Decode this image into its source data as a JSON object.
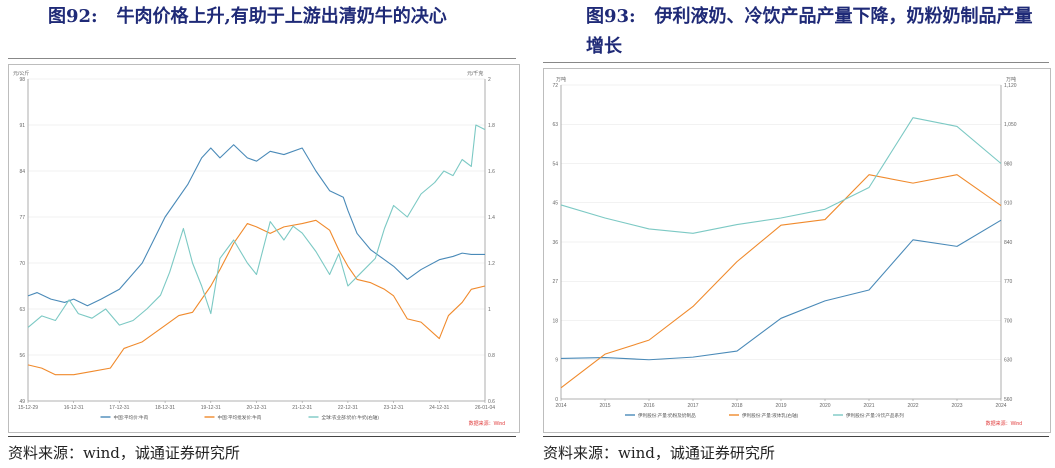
{
  "left": {
    "fig_no": "图92:",
    "title": "牛肉价格上升,有助于上游出清奶牛的决心",
    "source": "资料来源：wind，诚通证券研究所",
    "wind_note": "数据来源：Wind",
    "colors": {
      "beef_price": "#4a8ab8",
      "cow_price": "#f08a2c",
      "milk_price": "#7cc9c4",
      "wind_note": "#e03b3b"
    },
    "chart_data": {
      "type": "line",
      "left_unit": "元/公斤",
      "right_unit": "元/千克",
      "y_left": {
        "range": [
          49,
          98
        ],
        "ticks": [
          "49",
          "56",
          "63",
          "70",
          "77",
          "84",
          "91",
          "98"
        ]
      },
      "y_right": {
        "range": [
          0.6,
          2.0
        ],
        "ticks": [
          "0.6",
          "0.8",
          "1",
          "1.2",
          "1.4",
          "1.6",
          "1.8",
          "2"
        ]
      },
      "x_ticks": [
        "15-12-29",
        "16-12-31",
        "17-12-31",
        "18-12-31",
        "19-12-31",
        "20-12-31",
        "21-12-31",
        "22-12-31",
        "23-12-31",
        "24-12-31",
        "26-01-04"
      ],
      "grid": true,
      "legend_position": "bottom",
      "series": [
        {
          "name": "中国:平均价:牛肉",
          "axis": "left",
          "x": [
            0,
            0.2,
            0.5,
            0.8,
            1.0,
            1.3,
            1.6,
            2.0,
            2.5,
            3.0,
            3.5,
            3.8,
            4.0,
            4.2,
            4.5,
            4.8,
            5.0,
            5.3,
            5.6,
            6.0,
            6.3,
            6.6,
            6.9,
            7.0,
            7.2,
            7.5,
            7.8,
            8.0,
            8.3,
            8.6,
            9.0,
            9.3,
            9.5,
            9.7,
            10.0
          ],
          "y": [
            65.0,
            65.5,
            64.5,
            64.0,
            64.5,
            63.5,
            64.5,
            66.0,
            70.0,
            77.0,
            82.0,
            86.0,
            87.5,
            86.0,
            88.0,
            86.0,
            85.5,
            87.0,
            86.5,
            87.5,
            84.0,
            81.0,
            80.0,
            78.0,
            74.5,
            72.0,
            70.5,
            69.5,
            67.5,
            69.0,
            70.5,
            71.0,
            71.5,
            71.3,
            71.3
          ]
        },
        {
          "name": "中国:平均批发价:牛肉",
          "axis": "left",
          "x": [
            0,
            0.3,
            0.6,
            1.0,
            1.4,
            1.8,
            2.1,
            2.5,
            3.0,
            3.3,
            3.6,
            4.0,
            4.2,
            4.5,
            4.8,
            5.0,
            5.3,
            5.6,
            6.0,
            6.3,
            6.6,
            6.8,
            7.0,
            7.2,
            7.5,
            7.8,
            8.0,
            8.3,
            8.6,
            9.0,
            9.2,
            9.5,
            9.7,
            10.0
          ],
          "y": [
            54.5,
            54.0,
            53.0,
            53.0,
            53.5,
            54.0,
            57.0,
            58.0,
            60.5,
            62.0,
            62.5,
            66.5,
            69.0,
            73.0,
            76.0,
            75.5,
            74.5,
            75.5,
            76.0,
            76.5,
            75.0,
            72.0,
            69.5,
            67.5,
            67.0,
            66.0,
            65.0,
            61.5,
            61.0,
            58.5,
            62.0,
            64.0,
            66.0,
            66.5
          ]
        },
        {
          "name": "全球:农业部:奶价:牛奶(右轴)",
          "axis": "right",
          "x": [
            0,
            0.3,
            0.6,
            0.9,
            1.1,
            1.4,
            1.7,
            2.0,
            2.3,
            2.6,
            2.9,
            3.1,
            3.4,
            3.6,
            3.8,
            4.0,
            4.2,
            4.5,
            4.8,
            5.0,
            5.3,
            5.6,
            5.8,
            6.0,
            6.3,
            6.6,
            6.8,
            7.0,
            7.3,
            7.6,
            7.8,
            8.0,
            8.3,
            8.6,
            8.9,
            9.1,
            9.3,
            9.5,
            9.7,
            9.8,
            10.0
          ],
          "y": [
            0.92,
            0.97,
            0.95,
            1.04,
            0.98,
            0.96,
            1.0,
            0.93,
            0.95,
            1.0,
            1.06,
            1.16,
            1.35,
            1.2,
            1.1,
            0.98,
            1.22,
            1.3,
            1.2,
            1.15,
            1.38,
            1.3,
            1.36,
            1.33,
            1.25,
            1.15,
            1.24,
            1.1,
            1.16,
            1.22,
            1.35,
            1.45,
            1.4,
            1.5,
            1.55,
            1.6,
            1.58,
            1.65,
            1.62,
            1.8,
            1.78
          ]
        }
      ]
    }
  },
  "right": {
    "fig_no": "图93:",
    "title": "伊利液奶、冷饮产品产量下降，奶粉奶制品产量增长",
    "source": "资料来源：wind，诚通证券研究所",
    "wind_note": "数据来源：Wind",
    "colors": {
      "milk_powder": "#4a8ab8",
      "liquid_milk": "#f08a2c",
      "cold_drinks": "#7cc9c4",
      "wind_note": "#e03b3b"
    },
    "chart_data": {
      "type": "line",
      "left_unit": "万吨",
      "right_unit": "万吨",
      "y_left": {
        "range": [
          0,
          72
        ],
        "ticks": [
          "0",
          "9",
          "18",
          "27",
          "36",
          "45",
          "54",
          "63",
          "72"
        ]
      },
      "y_right": {
        "range": [
          560,
          1120
        ],
        "ticks": [
          "560",
          "630",
          "700",
          "770",
          "840",
          "910",
          "980",
          "1,050",
          "1,120"
        ]
      },
      "categories": [
        "2014",
        "2015",
        "2016",
        "2017",
        "2018",
        "2019",
        "2020",
        "2021",
        "2022",
        "2023",
        "2024"
      ],
      "grid": true,
      "legend_position": "bottom",
      "series": [
        {
          "name": "伊利股份:产量:奶粉及奶制品",
          "axis": "left",
          "values": [
            9.3,
            9.5,
            9.0,
            9.6,
            11.0,
            18.5,
            22.5,
            25.0,
            36.5,
            35.0,
            41.0
          ]
        },
        {
          "name": "伊利股份:产量:液体乳(右轴)",
          "axis": "right",
          "values": [
            580,
            640,
            665,
            725,
            805,
            870,
            880,
            960,
            945,
            960,
            905
          ]
        },
        {
          "name": "伊利股份:产量:冷饮产品系列",
          "axis": "left",
          "values": [
            44.5,
            41.5,
            39.0,
            38.0,
            40.0,
            41.5,
            43.5,
            48.5,
            64.5,
            62.5,
            54.0
          ]
        }
      ]
    }
  }
}
